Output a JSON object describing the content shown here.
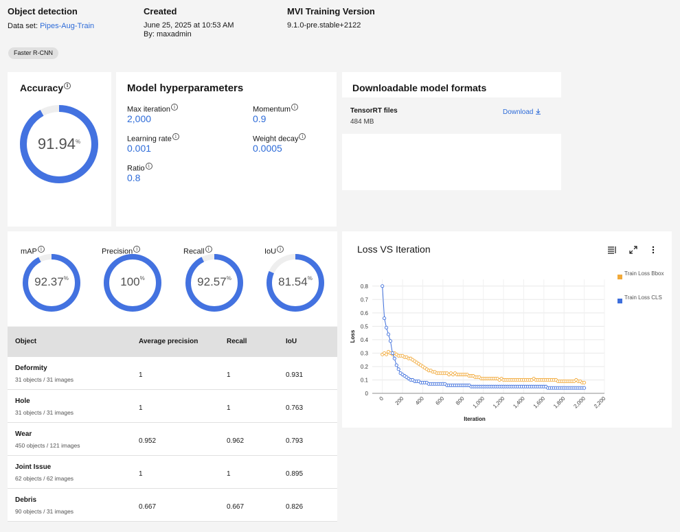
{
  "header": {
    "model_type": "Object detection",
    "dataset_label": "Data set:",
    "dataset_name": "Pipes-Aug-Train",
    "created_title": "Created",
    "created_date": "June 25, 2025 at 10:53 AM",
    "created_by": "By: maxadmin",
    "version_title": "MVI Training Version",
    "version_value": "9.1.0-pre.stable+2122",
    "tag": "Faster R-CNN"
  },
  "accuracy": {
    "title": "Accuracy",
    "value": "91.94",
    "unit": "%",
    "fraction": 0.9194
  },
  "hyperparameters": {
    "title": "Model hyperparameters",
    "items": [
      {
        "label": "Max iteration",
        "value": "2,000"
      },
      {
        "label": "Momentum",
        "value": "0.9"
      },
      {
        "label": "Learning rate",
        "value": "0.001"
      },
      {
        "label": "Weight decay",
        "value": "0.0005"
      },
      {
        "label": "Ratio",
        "value": "0.8"
      }
    ]
  },
  "downloads": {
    "title": "Downloadable model formats",
    "file_name": "TensorRT files",
    "file_size": "484 MB",
    "download_label": "Download"
  },
  "metrics": [
    {
      "label": "mAP",
      "value": "92.37",
      "unit": "%",
      "fraction": 0.9237
    },
    {
      "label": "Precision",
      "value": "100",
      "unit": "%",
      "fraction": 1.0
    },
    {
      "label": "Recall",
      "value": "92.57",
      "unit": "%",
      "fraction": 0.9257
    },
    {
      "label": "IoU",
      "value": "81.54",
      "unit": "%",
      "fraction": 0.8154
    }
  ],
  "table": {
    "headers": [
      "Object",
      "Average precision",
      "Recall",
      "IoU"
    ],
    "rows": [
      {
        "name": "Deformity",
        "sub": "31 objects / 31 images",
        "ap": "1",
        "recall": "1",
        "iou": "0.931"
      },
      {
        "name": "Hole",
        "sub": "31 objects / 31 images",
        "ap": "1",
        "recall": "1",
        "iou": "0.763"
      },
      {
        "name": "Wear",
        "sub": "450 objects / 121 images",
        "ap": "0.952",
        "recall": "0.962",
        "iou": "0.793"
      },
      {
        "name": "Joint Issue",
        "sub": "62 objects / 62 images",
        "ap": "1",
        "recall": "1",
        "iou": "0.895"
      },
      {
        "name": "Debris",
        "sub": "90 objects / 31 images",
        "ap": "0.667",
        "recall": "0.667",
        "iou": "0.826"
      }
    ]
  },
  "colors": {
    "accent": "#4372e0",
    "bbox": "#f1a93a",
    "cls": "#3e6fdc",
    "ring_track": "#eeeeee"
  },
  "chart_data": {
    "type": "line",
    "title": "Loss VS Iteration",
    "xlabel": "Iteration",
    "ylabel": "Loss",
    "xlim": [
      -100,
      2200
    ],
    "ylim": [
      0,
      0.85
    ],
    "xticks": [
      "0",
      "200",
      "400",
      "600",
      "800",
      "1,000",
      "1,200",
      "1,400",
      "1,600",
      "1,800",
      "2,000",
      "2,200"
    ],
    "yticks": [
      "0",
      "0.1",
      "0.2",
      "0.3",
      "0.4",
      "0.5",
      "0.6",
      "0.7",
      "0.8"
    ],
    "legend_position": "right",
    "series": [
      {
        "name": "Train Loss Bbox",
        "color": "#f1a93a",
        "x": [
          0,
          20,
          40,
          60,
          80,
          100,
          120,
          140,
          160,
          180,
          200,
          220,
          240,
          260,
          280,
          300,
          320,
          340,
          360,
          380,
          400,
          420,
          440,
          460,
          480,
          500,
          520,
          540,
          560,
          580,
          600,
          620,
          640,
          660,
          680,
          700,
          720,
          740,
          760,
          780,
          800,
          820,
          840,
          860,
          880,
          900,
          920,
          940,
          960,
          980,
          1000,
          1020,
          1040,
          1060,
          1080,
          1100,
          1120,
          1140,
          1160,
          1180,
          1200,
          1220,
          1240,
          1260,
          1280,
          1300,
          1320,
          1340,
          1360,
          1380,
          1400,
          1420,
          1440,
          1460,
          1480,
          1500,
          1520,
          1540,
          1560,
          1580,
          1600,
          1620,
          1640,
          1660,
          1680,
          1700,
          1720,
          1740,
          1760,
          1780,
          1800,
          1820,
          1840,
          1860,
          1880,
          1900,
          1920,
          1940,
          1960,
          1980,
          2000
        ],
        "y": [
          0.29,
          0.3,
          0.29,
          0.31,
          0.3,
          0.29,
          0.3,
          0.29,
          0.28,
          0.28,
          0.28,
          0.27,
          0.27,
          0.26,
          0.26,
          0.25,
          0.24,
          0.23,
          0.22,
          0.21,
          0.2,
          0.19,
          0.18,
          0.17,
          0.17,
          0.16,
          0.16,
          0.15,
          0.15,
          0.15,
          0.15,
          0.15,
          0.15,
          0.14,
          0.15,
          0.14,
          0.15,
          0.14,
          0.14,
          0.14,
          0.14,
          0.14,
          0.14,
          0.13,
          0.13,
          0.13,
          0.12,
          0.12,
          0.12,
          0.11,
          0.11,
          0.11,
          0.11,
          0.11,
          0.11,
          0.11,
          0.11,
          0.11,
          0.1,
          0.11,
          0.1,
          0.1,
          0.1,
          0.1,
          0.1,
          0.1,
          0.1,
          0.1,
          0.1,
          0.1,
          0.1,
          0.1,
          0.1,
          0.1,
          0.1,
          0.11,
          0.1,
          0.1,
          0.1,
          0.1,
          0.1,
          0.1,
          0.1,
          0.1,
          0.1,
          0.1,
          0.1,
          0.09,
          0.09,
          0.09,
          0.09,
          0.09,
          0.09,
          0.09,
          0.09,
          0.09,
          0.1,
          0.09,
          0.09,
          0.08,
          0.08
        ]
      },
      {
        "name": "Train Loss CLS",
        "color": "#3e6fdc",
        "x": [
          0,
          20,
          40,
          60,
          80,
          100,
          120,
          140,
          160,
          180,
          200,
          220,
          240,
          260,
          280,
          300,
          320,
          340,
          360,
          380,
          400,
          420,
          440,
          460,
          480,
          500,
          520,
          540,
          560,
          580,
          600,
          620,
          640,
          660,
          680,
          700,
          720,
          740,
          760,
          780,
          800,
          820,
          840,
          860,
          880,
          900,
          920,
          940,
          960,
          980,
          1000,
          1020,
          1040,
          1060,
          1080,
          1100,
          1120,
          1140,
          1160,
          1180,
          1200,
          1220,
          1240,
          1260,
          1280,
          1300,
          1320,
          1340,
          1360,
          1380,
          1400,
          1420,
          1440,
          1460,
          1480,
          1500,
          1520,
          1540,
          1560,
          1580,
          1600,
          1620,
          1640,
          1660,
          1680,
          1700,
          1720,
          1740,
          1760,
          1780,
          1800,
          1820,
          1840,
          1860,
          1880,
          1900,
          1920,
          1940,
          1960,
          1980,
          2000
        ],
        "y": [
          0.8,
          0.56,
          0.49,
          0.44,
          0.39,
          0.3,
          0.26,
          0.21,
          0.18,
          0.15,
          0.14,
          0.13,
          0.12,
          0.11,
          0.1,
          0.1,
          0.09,
          0.09,
          0.09,
          0.08,
          0.08,
          0.08,
          0.08,
          0.07,
          0.07,
          0.07,
          0.07,
          0.07,
          0.07,
          0.07,
          0.07,
          0.07,
          0.06,
          0.06,
          0.06,
          0.06,
          0.06,
          0.06,
          0.06,
          0.06,
          0.06,
          0.06,
          0.06,
          0.06,
          0.05,
          0.05,
          0.05,
          0.05,
          0.05,
          0.05,
          0.05,
          0.05,
          0.05,
          0.05,
          0.05,
          0.05,
          0.05,
          0.05,
          0.05,
          0.05,
          0.05,
          0.05,
          0.05,
          0.05,
          0.05,
          0.05,
          0.05,
          0.05,
          0.05,
          0.05,
          0.05,
          0.05,
          0.05,
          0.05,
          0.05,
          0.05,
          0.05,
          0.05,
          0.05,
          0.05,
          0.05,
          0.05,
          0.04,
          0.04,
          0.04,
          0.04,
          0.04,
          0.04,
          0.04,
          0.04,
          0.04,
          0.04,
          0.04,
          0.04,
          0.04,
          0.04,
          0.04,
          0.04,
          0.04,
          0.04,
          0.04
        ]
      }
    ]
  }
}
